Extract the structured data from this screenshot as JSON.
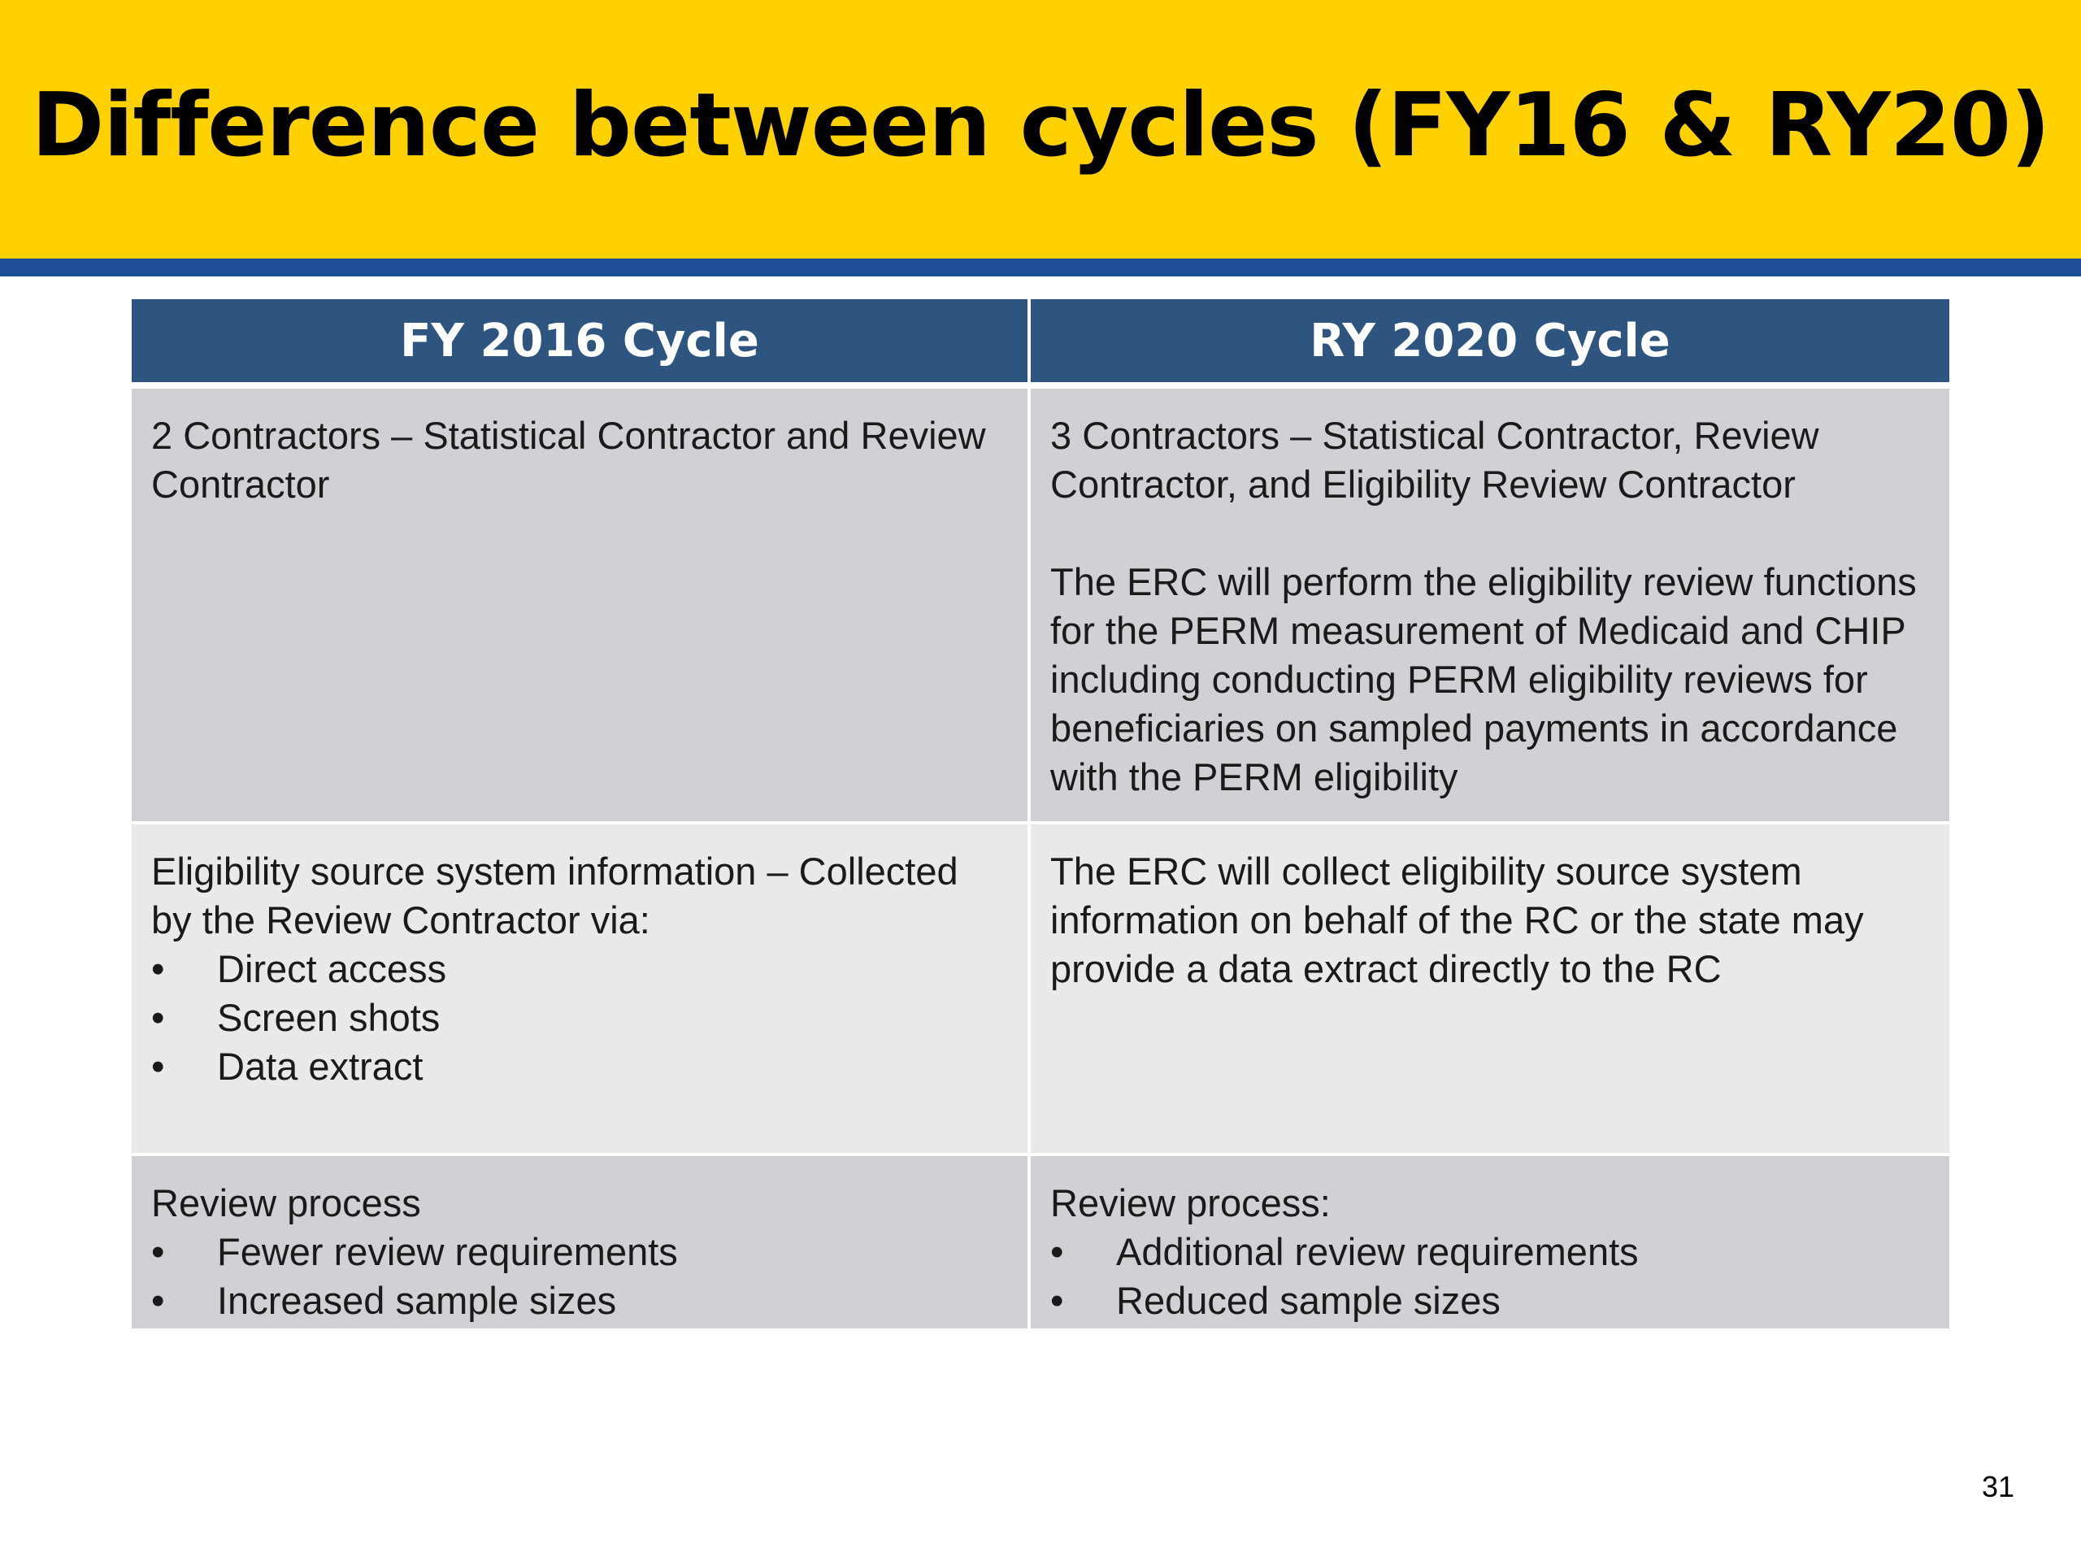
{
  "slide": {
    "title": "Difference between cycles (FY16 & RY20)",
    "page_number": "31",
    "colors": {
      "title_band": "#ffd100",
      "title_rule": "#1f4e99",
      "table_header": "#2e5580",
      "row_dark": "#cfd1d5",
      "row_light": "#e8e9eb"
    }
  },
  "table": {
    "headers": [
      "FY 2016 Cycle",
      "RY 2020 Cycle"
    ],
    "rows": [
      {
        "left": {
          "paragraphs": [
            "2 Contractors – Statistical Contractor and Review Contractor"
          ]
        },
        "right": {
          "paragraphs": [
            "3 Contractors – Statistical Contractor, Review Contractor, and Eligibility Review Contractor",
            "The ERC will perform the eligibility review functions for the PERM measurement of Medicaid and CHIP including conducting PERM eligibility reviews for beneficiaries on sampled payments in accordance with the PERM eligibility"
          ]
        }
      },
      {
        "left": {
          "intro": "Eligibility source system information – Collected by the Review Contractor via:",
          "bullets": [
            "Direct access",
            "Screen shots",
            "Data extract"
          ]
        },
        "right": {
          "paragraphs": [
            "The ERC will collect eligibility source system information on behalf of the RC or the state may provide a data extract directly to the RC"
          ]
        }
      },
      {
        "left": {
          "intro": "Review process",
          "bullets": [
            "Fewer review requirements",
            "Increased sample sizes"
          ]
        },
        "right": {
          "intro": "Review process:",
          "bullets": [
            "Additional review requirements",
            "Reduced sample sizes"
          ]
        }
      }
    ]
  }
}
